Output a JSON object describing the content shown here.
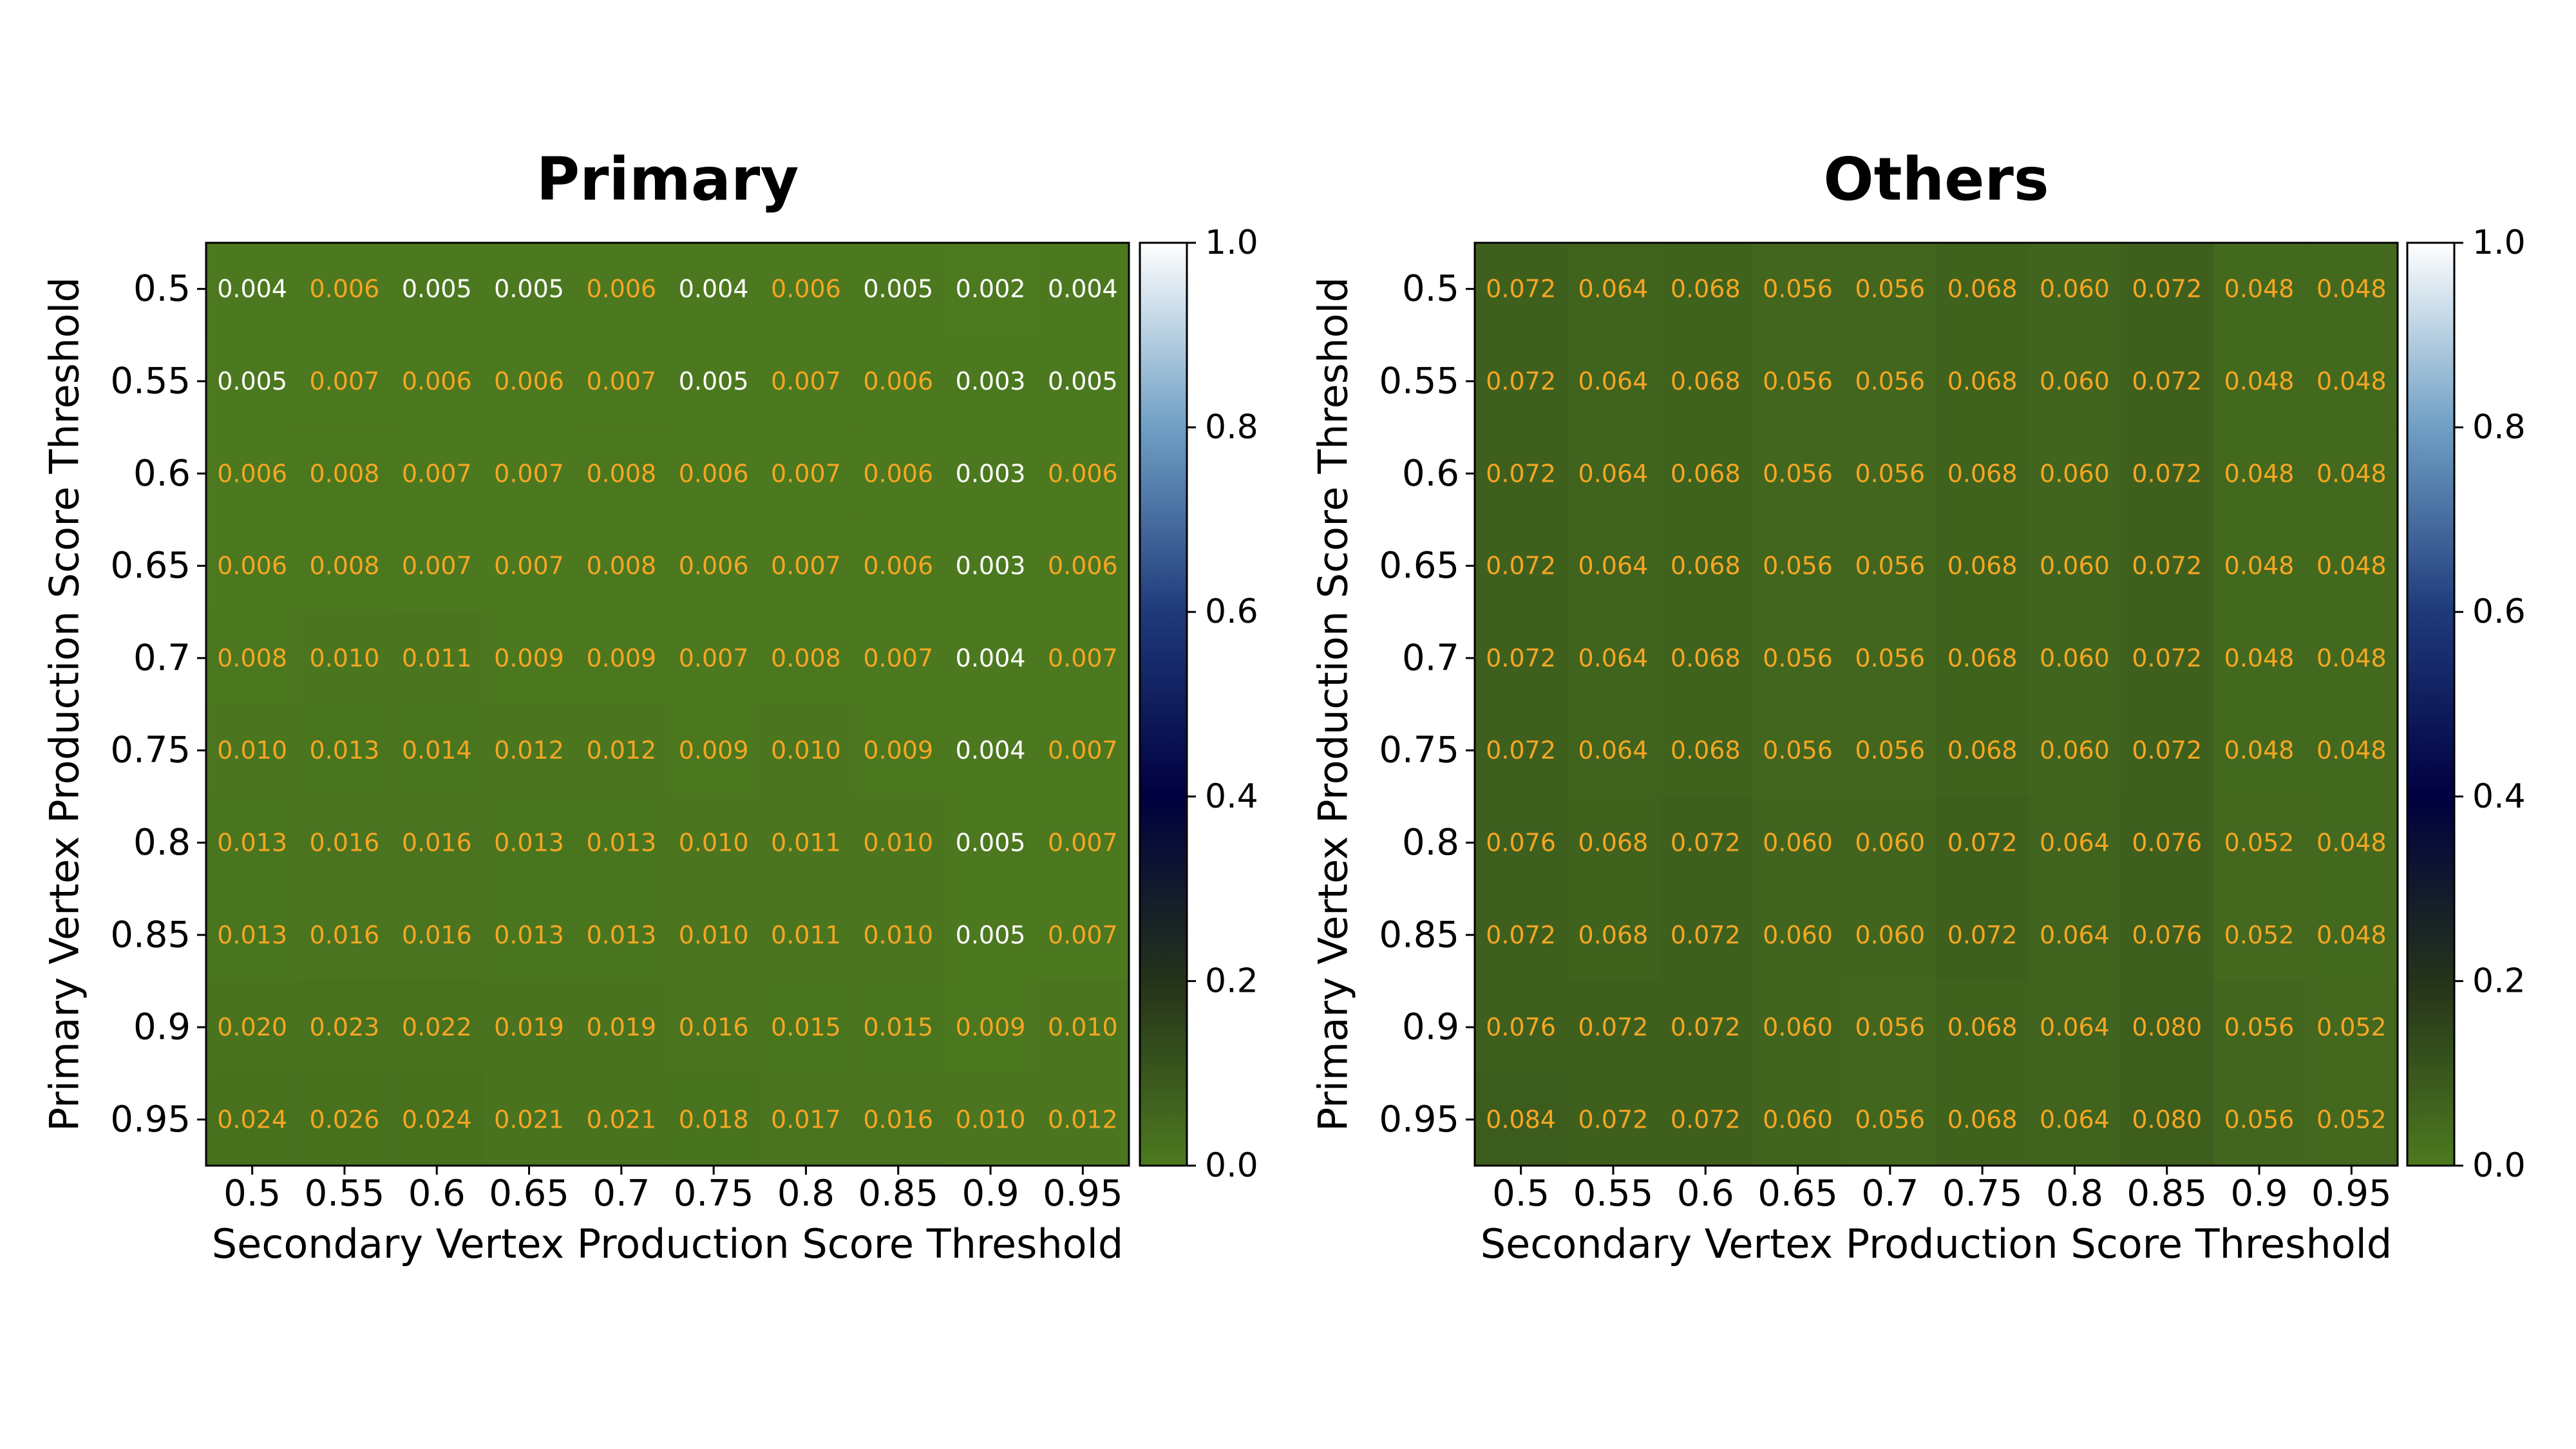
{
  "figure": {
    "charts": [
      {
        "type": "heatmap",
        "title": "Primary",
        "xlabel": "Secondary Vertex Production Score Threshold",
        "ylabel": "Primary Vertex Production Score Threshold",
        "x": [
          "0.5",
          "0.55",
          "0.6",
          "0.65",
          "0.7",
          "0.75",
          "0.8",
          "0.85",
          "0.9",
          "0.95"
        ],
        "y": [
          "0.5",
          "0.55",
          "0.6",
          "0.65",
          "0.7",
          "0.75",
          "0.8",
          "0.85",
          "0.9",
          "0.95"
        ],
        "values": [
          [
            "0.004",
            "0.006",
            "0.005",
            "0.005",
            "0.006",
            "0.004",
            "0.006",
            "0.005",
            "0.002",
            "0.004"
          ],
          [
            "0.005",
            "0.007",
            "0.006",
            "0.006",
            "0.007",
            "0.005",
            "0.007",
            "0.006",
            "0.003",
            "0.005"
          ],
          [
            "0.006",
            "0.008",
            "0.007",
            "0.007",
            "0.008",
            "0.006",
            "0.007",
            "0.006",
            "0.003",
            "0.006"
          ],
          [
            "0.006",
            "0.008",
            "0.007",
            "0.007",
            "0.008",
            "0.006",
            "0.007",
            "0.006",
            "0.003",
            "0.006"
          ],
          [
            "0.008",
            "0.010",
            "0.011",
            "0.009",
            "0.009",
            "0.007",
            "0.008",
            "0.007",
            "0.004",
            "0.007"
          ],
          [
            "0.010",
            "0.013",
            "0.014",
            "0.012",
            "0.012",
            "0.009",
            "0.010",
            "0.009",
            "0.004",
            "0.007"
          ],
          [
            "0.013",
            "0.016",
            "0.016",
            "0.013",
            "0.013",
            "0.010",
            "0.011",
            "0.010",
            "0.005",
            "0.007"
          ],
          [
            "0.013",
            "0.016",
            "0.016",
            "0.013",
            "0.013",
            "0.010",
            "0.011",
            "0.010",
            "0.005",
            "0.007"
          ],
          [
            "0.020",
            "0.023",
            "0.022",
            "0.019",
            "0.019",
            "0.016",
            "0.015",
            "0.015",
            "0.009",
            "0.010"
          ],
          [
            "0.024",
            "0.026",
            "0.024",
            "0.021",
            "0.021",
            "0.018",
            "0.017",
            "0.016",
            "0.010",
            "0.012"
          ]
        ],
        "label_colors": [
          [
            "white",
            "orange",
            "white",
            "white",
            "orange",
            "white",
            "orange",
            "white",
            "white",
            "white"
          ],
          [
            "white",
            "orange",
            "orange",
            "orange",
            "orange",
            "white",
            "orange",
            "orange",
            "white",
            "white"
          ],
          [
            "orange",
            "orange",
            "orange",
            "orange",
            "orange",
            "orange",
            "orange",
            "orange",
            "white",
            "orange"
          ],
          [
            "orange",
            "orange",
            "orange",
            "orange",
            "orange",
            "orange",
            "orange",
            "orange",
            "white",
            "orange"
          ],
          [
            "orange",
            "orange",
            "orange",
            "orange",
            "orange",
            "orange",
            "orange",
            "orange",
            "white",
            "orange"
          ],
          [
            "orange",
            "orange",
            "orange",
            "orange",
            "orange",
            "orange",
            "orange",
            "orange",
            "white",
            "orange"
          ],
          [
            "orange",
            "orange",
            "orange",
            "orange",
            "orange",
            "orange",
            "orange",
            "orange",
            "white",
            "orange"
          ],
          [
            "orange",
            "orange",
            "orange",
            "orange",
            "orange",
            "orange",
            "orange",
            "orange",
            "white",
            "orange"
          ],
          [
            "orange",
            "orange",
            "orange",
            "orange",
            "orange",
            "orange",
            "orange",
            "orange",
            "orange",
            "orange"
          ],
          [
            "orange",
            "orange",
            "orange",
            "orange",
            "orange",
            "orange",
            "orange",
            "orange",
            "orange",
            "orange"
          ]
        ],
        "colorbar": {
          "range": [
            0,
            1
          ],
          "ticks": [
            "0.0",
            "0.2",
            "0.4",
            "0.6",
            "0.8",
            "1.0"
          ]
        },
        "grid": false
      },
      {
        "type": "heatmap",
        "title": "Others",
        "xlabel": "Secondary Vertex Production Score Threshold",
        "ylabel": "Primary Vertex Production Score Threshold",
        "x": [
          "0.5",
          "0.55",
          "0.6",
          "0.65",
          "0.7",
          "0.75",
          "0.8",
          "0.85",
          "0.9",
          "0.95"
        ],
        "y": [
          "0.5",
          "0.55",
          "0.6",
          "0.65",
          "0.7",
          "0.75",
          "0.8",
          "0.85",
          "0.9",
          "0.95"
        ],
        "values": [
          [
            "0.072",
            "0.064",
            "0.068",
            "0.056",
            "0.056",
            "0.068",
            "0.060",
            "0.072",
            "0.048",
            "0.048"
          ],
          [
            "0.072",
            "0.064",
            "0.068",
            "0.056",
            "0.056",
            "0.068",
            "0.060",
            "0.072",
            "0.048",
            "0.048"
          ],
          [
            "0.072",
            "0.064",
            "0.068",
            "0.056",
            "0.056",
            "0.068",
            "0.060",
            "0.072",
            "0.048",
            "0.048"
          ],
          [
            "0.072",
            "0.064",
            "0.068",
            "0.056",
            "0.056",
            "0.068",
            "0.060",
            "0.072",
            "0.048",
            "0.048"
          ],
          [
            "0.072",
            "0.064",
            "0.068",
            "0.056",
            "0.056",
            "0.068",
            "0.060",
            "0.072",
            "0.048",
            "0.048"
          ],
          [
            "0.072",
            "0.064",
            "0.068",
            "0.056",
            "0.056",
            "0.068",
            "0.060",
            "0.072",
            "0.048",
            "0.048"
          ],
          [
            "0.076",
            "0.068",
            "0.072",
            "0.060",
            "0.060",
            "0.072",
            "0.064",
            "0.076",
            "0.052",
            "0.048"
          ],
          [
            "0.072",
            "0.068",
            "0.072",
            "0.060",
            "0.060",
            "0.072",
            "0.064",
            "0.076",
            "0.052",
            "0.048"
          ],
          [
            "0.076",
            "0.072",
            "0.072",
            "0.060",
            "0.056",
            "0.068",
            "0.064",
            "0.080",
            "0.056",
            "0.052"
          ],
          [
            "0.084",
            "0.072",
            "0.072",
            "0.060",
            "0.056",
            "0.068",
            "0.064",
            "0.080",
            "0.056",
            "0.052"
          ]
        ],
        "colorbar": {
          "range": [
            0,
            1
          ],
          "ticks": [
            "0.0",
            "0.2",
            "0.4",
            "0.6",
            "0.8",
            "1.0"
          ]
        },
        "grid": false
      }
    ]
  },
  "chart_data": [
    {
      "type": "heatmap",
      "title": "Primary",
      "xlabel": "Secondary Vertex Production Score Threshold",
      "ylabel": "Primary Vertex Production Score Threshold",
      "x": [
        0.5,
        0.55,
        0.6,
        0.65,
        0.7,
        0.75,
        0.8,
        0.85,
        0.9,
        0.95
      ],
      "y": [
        0.5,
        0.55,
        0.6,
        0.65,
        0.7,
        0.75,
        0.8,
        0.85,
        0.9,
        0.95
      ],
      "z": [
        [
          0.004,
          0.006,
          0.005,
          0.005,
          0.006,
          0.004,
          0.006,
          0.005,
          0.002,
          0.004
        ],
        [
          0.005,
          0.007,
          0.006,
          0.006,
          0.007,
          0.005,
          0.007,
          0.006,
          0.003,
          0.005
        ],
        [
          0.006,
          0.008,
          0.007,
          0.007,
          0.008,
          0.006,
          0.007,
          0.006,
          0.003,
          0.006
        ],
        [
          0.006,
          0.008,
          0.007,
          0.007,
          0.008,
          0.006,
          0.007,
          0.006,
          0.003,
          0.006
        ],
        [
          0.008,
          0.01,
          0.011,
          0.009,
          0.009,
          0.007,
          0.008,
          0.007,
          0.004,
          0.007
        ],
        [
          0.01,
          0.013,
          0.014,
          0.012,
          0.012,
          0.009,
          0.01,
          0.009,
          0.004,
          0.007
        ],
        [
          0.013,
          0.016,
          0.016,
          0.013,
          0.013,
          0.01,
          0.011,
          0.01,
          0.005,
          0.007
        ],
        [
          0.013,
          0.016,
          0.016,
          0.013,
          0.013,
          0.01,
          0.011,
          0.01,
          0.005,
          0.007
        ],
        [
          0.02,
          0.023,
          0.022,
          0.019,
          0.019,
          0.016,
          0.015,
          0.015,
          0.009,
          0.01
        ],
        [
          0.024,
          0.026,
          0.024,
          0.021,
          0.021,
          0.018,
          0.017,
          0.016,
          0.01,
          0.012
        ]
      ],
      "colorbar_range": [
        0,
        1
      ],
      "colorbar_ticks": [
        0.0,
        0.2,
        0.4,
        0.6,
        0.8,
        1.0
      ],
      "grid": false
    },
    {
      "type": "heatmap",
      "title": "Others",
      "xlabel": "Secondary Vertex Production Score Threshold",
      "ylabel": "Primary Vertex Production Score Threshold",
      "x": [
        0.5,
        0.55,
        0.6,
        0.65,
        0.7,
        0.75,
        0.8,
        0.85,
        0.9,
        0.95
      ],
      "y": [
        0.5,
        0.55,
        0.6,
        0.65,
        0.7,
        0.75,
        0.8,
        0.85,
        0.9,
        0.95
      ],
      "z": [
        [
          0.072,
          0.064,
          0.068,
          0.056,
          0.056,
          0.068,
          0.06,
          0.072,
          0.048,
          0.048
        ],
        [
          0.072,
          0.064,
          0.068,
          0.056,
          0.056,
          0.068,
          0.06,
          0.072,
          0.048,
          0.048
        ],
        [
          0.072,
          0.064,
          0.068,
          0.056,
          0.056,
          0.068,
          0.06,
          0.072,
          0.048,
          0.048
        ],
        [
          0.072,
          0.064,
          0.068,
          0.056,
          0.056,
          0.068,
          0.06,
          0.072,
          0.048,
          0.048
        ],
        [
          0.072,
          0.064,
          0.068,
          0.056,
          0.056,
          0.068,
          0.06,
          0.072,
          0.048,
          0.048
        ],
        [
          0.072,
          0.064,
          0.068,
          0.056,
          0.056,
          0.068,
          0.06,
          0.072,
          0.048,
          0.048
        ],
        [
          0.076,
          0.068,
          0.072,
          0.06,
          0.06,
          0.072,
          0.064,
          0.076,
          0.052,
          0.048
        ],
        [
          0.072,
          0.068,
          0.072,
          0.06,
          0.06,
          0.072,
          0.064,
          0.076,
          0.052,
          0.048
        ],
        [
          0.076,
          0.072,
          0.072,
          0.06,
          0.056,
          0.068,
          0.064,
          0.08,
          0.056,
          0.052
        ],
        [
          0.084,
          0.072,
          0.072,
          0.06,
          0.056,
          0.068,
          0.064,
          0.08,
          0.056,
          0.052
        ]
      ],
      "colorbar_range": [
        0,
        1
      ],
      "colorbar_ticks": [
        0.0,
        0.2,
        0.4,
        0.6,
        0.8,
        1.0
      ],
      "grid": false
    }
  ],
  "colors": {
    "colormap": [
      "#4d7a1f",
      "#25331a",
      "#000040",
      "#1f3a7a",
      "#6f9fc4",
      "#ffffff"
    ],
    "label_white": "#ffffff",
    "label_orange": "#f5a623",
    "axis": "#000000",
    "background": "#ffffff"
  }
}
